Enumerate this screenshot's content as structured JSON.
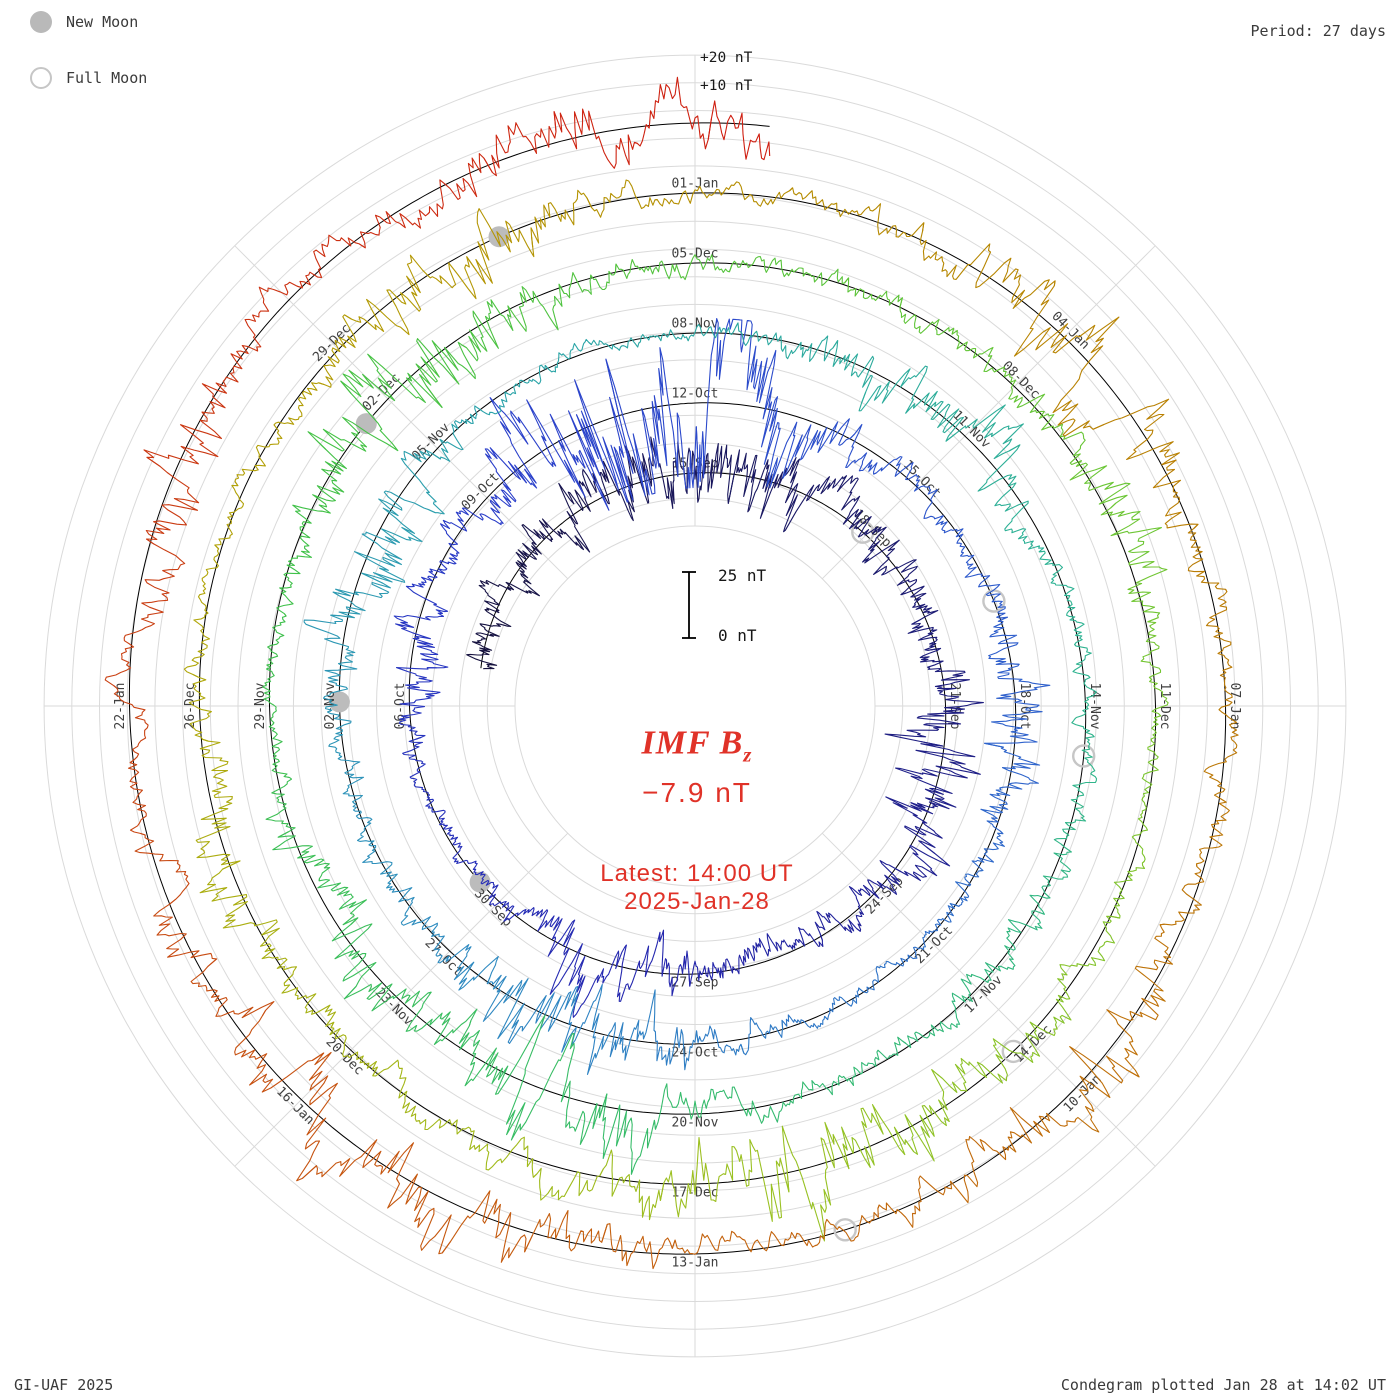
{
  "header": {
    "period_label": "Period: 27 days"
  },
  "legend": {
    "new_moon": "New Moon",
    "full_moon": "Full Moon"
  },
  "footer": {
    "left": "GI-UAF 2025",
    "right": "Condegram plotted Jan 28 at 14:02 UT"
  },
  "center": {
    "title_main": "IMF B",
    "title_sub": "z",
    "value": "−7.9 nT",
    "latest_line1": "Latest: 14:00 UT",
    "latest_line2": "2025-Jan-28"
  },
  "scale": {
    "bar_top": "25 nT",
    "bar_bottom": "0 nT",
    "outer_labels": [
      "+20 nT",
      "+10 nT"
    ]
  },
  "colors": {
    "accent_red": "#e03228",
    "grid": "#dadada",
    "baseline": "#000000",
    "moon_gray": "#bcbcbc",
    "label_gray": "#3f3f3f"
  },
  "chart_data": {
    "type": "line",
    "style": "polar-spiral-condegram",
    "quantity": "IMF Bz",
    "units": "nT",
    "period_days": 27,
    "latest_value_nT": -7.9,
    "latest_time": "14:00 UT",
    "latest_date": "2025-Jan-28",
    "plotted_stamp": "Jan 28 at 14:02 UT",
    "radial_gridline_step_nT": 10,
    "reference_scale": {
      "zero": "0 nT",
      "span": "25 nT"
    },
    "outer_gridline_labels": [
      "+10 nT",
      "+20 nT"
    ],
    "wrap_top_dates": [
      "15-Sep",
      "12-Oct",
      "08-Nov",
      "05-Dec",
      "01-Jan",
      "28-Jan"
    ],
    "spokes": [
      {
        "angle_deg": 0,
        "labels": [
          "15-Sep",
          "12-Oct",
          "08-Nov",
          "05-Dec",
          "01-Jan"
        ]
      },
      {
        "angle_deg": 45,
        "labels": [
          "18-Sep",
          "15-Oct",
          "11-Nov",
          "08-Dec",
          "04-Jan"
        ]
      },
      {
        "angle_deg": 90,
        "labels": [
          "21-Sep",
          "18-Oct",
          "14-Nov",
          "11-Dec",
          "07-Jan"
        ]
      },
      {
        "angle_deg": 135,
        "labels": [
          "24-Sep",
          "21-Oct",
          "17-Nov",
          "14-Dec",
          "10-Jan"
        ]
      },
      {
        "angle_deg": 180,
        "labels": [
          "27-Sep",
          "24-Oct",
          "20-Nov",
          "17-Dec",
          "13-Jan"
        ]
      },
      {
        "angle_deg": 225,
        "labels": [
          "30-Sep",
          "27-Oct",
          "23-Nov",
          "20-Dec",
          "16-Jan"
        ]
      },
      {
        "angle_deg": 270,
        "labels": [
          "06-Oct",
          "02-Nov",
          "29-Nov",
          "26-Dec",
          "22-Jan"
        ]
      },
      {
        "angle_deg": 315,
        "labels": [
          "09-Oct",
          "05-Nov",
          "02-Dec",
          "29-Dec"
        ]
      }
    ],
    "moon_events": [
      {
        "type": "full",
        "date": "18-Sep"
      },
      {
        "type": "new",
        "date": "02-Oct"
      },
      {
        "type": "full",
        "date": "17-Oct"
      },
      {
        "type": "new",
        "date": "01-Nov"
      },
      {
        "type": "full",
        "date": "15-Nov"
      },
      {
        "type": "new",
        "date": "01-Dec"
      },
      {
        "type": "full",
        "date": "15-Dec"
      },
      {
        "type": "new",
        "date": "30-Dec"
      },
      {
        "type": "full",
        "date": "13-Jan"
      }
    ],
    "color_stops": [
      {
        "t": 0,
        "color": "#16123e"
      },
      {
        "t": 10,
        "color": "#1b1a6e"
      },
      {
        "t": 20,
        "color": "#2527ae"
      },
      {
        "t": 30,
        "color": "#2a3eca"
      },
      {
        "t": 40,
        "color": "#2f62cc"
      },
      {
        "t": 50,
        "color": "#2f8cc0"
      },
      {
        "t": 58,
        "color": "#2ba4a8"
      },
      {
        "t": 66,
        "color": "#2fb392"
      },
      {
        "t": 74,
        "color": "#37bc6a"
      },
      {
        "t": 82,
        "color": "#40c148"
      },
      {
        "t": 92,
        "color": "#6cc634"
      },
      {
        "t": 100,
        "color": "#9ac122"
      },
      {
        "t": 108,
        "color": "#b2a60a"
      },
      {
        "t": 115,
        "color": "#b58b00"
      },
      {
        "t": 122,
        "color": "#bd7607"
      },
      {
        "t": 128,
        "color": "#c4600e"
      },
      {
        "t": 134,
        "color": "#c94413"
      },
      {
        "t": 141.6,
        "color": "#cf1d10"
      }
    ]
  }
}
